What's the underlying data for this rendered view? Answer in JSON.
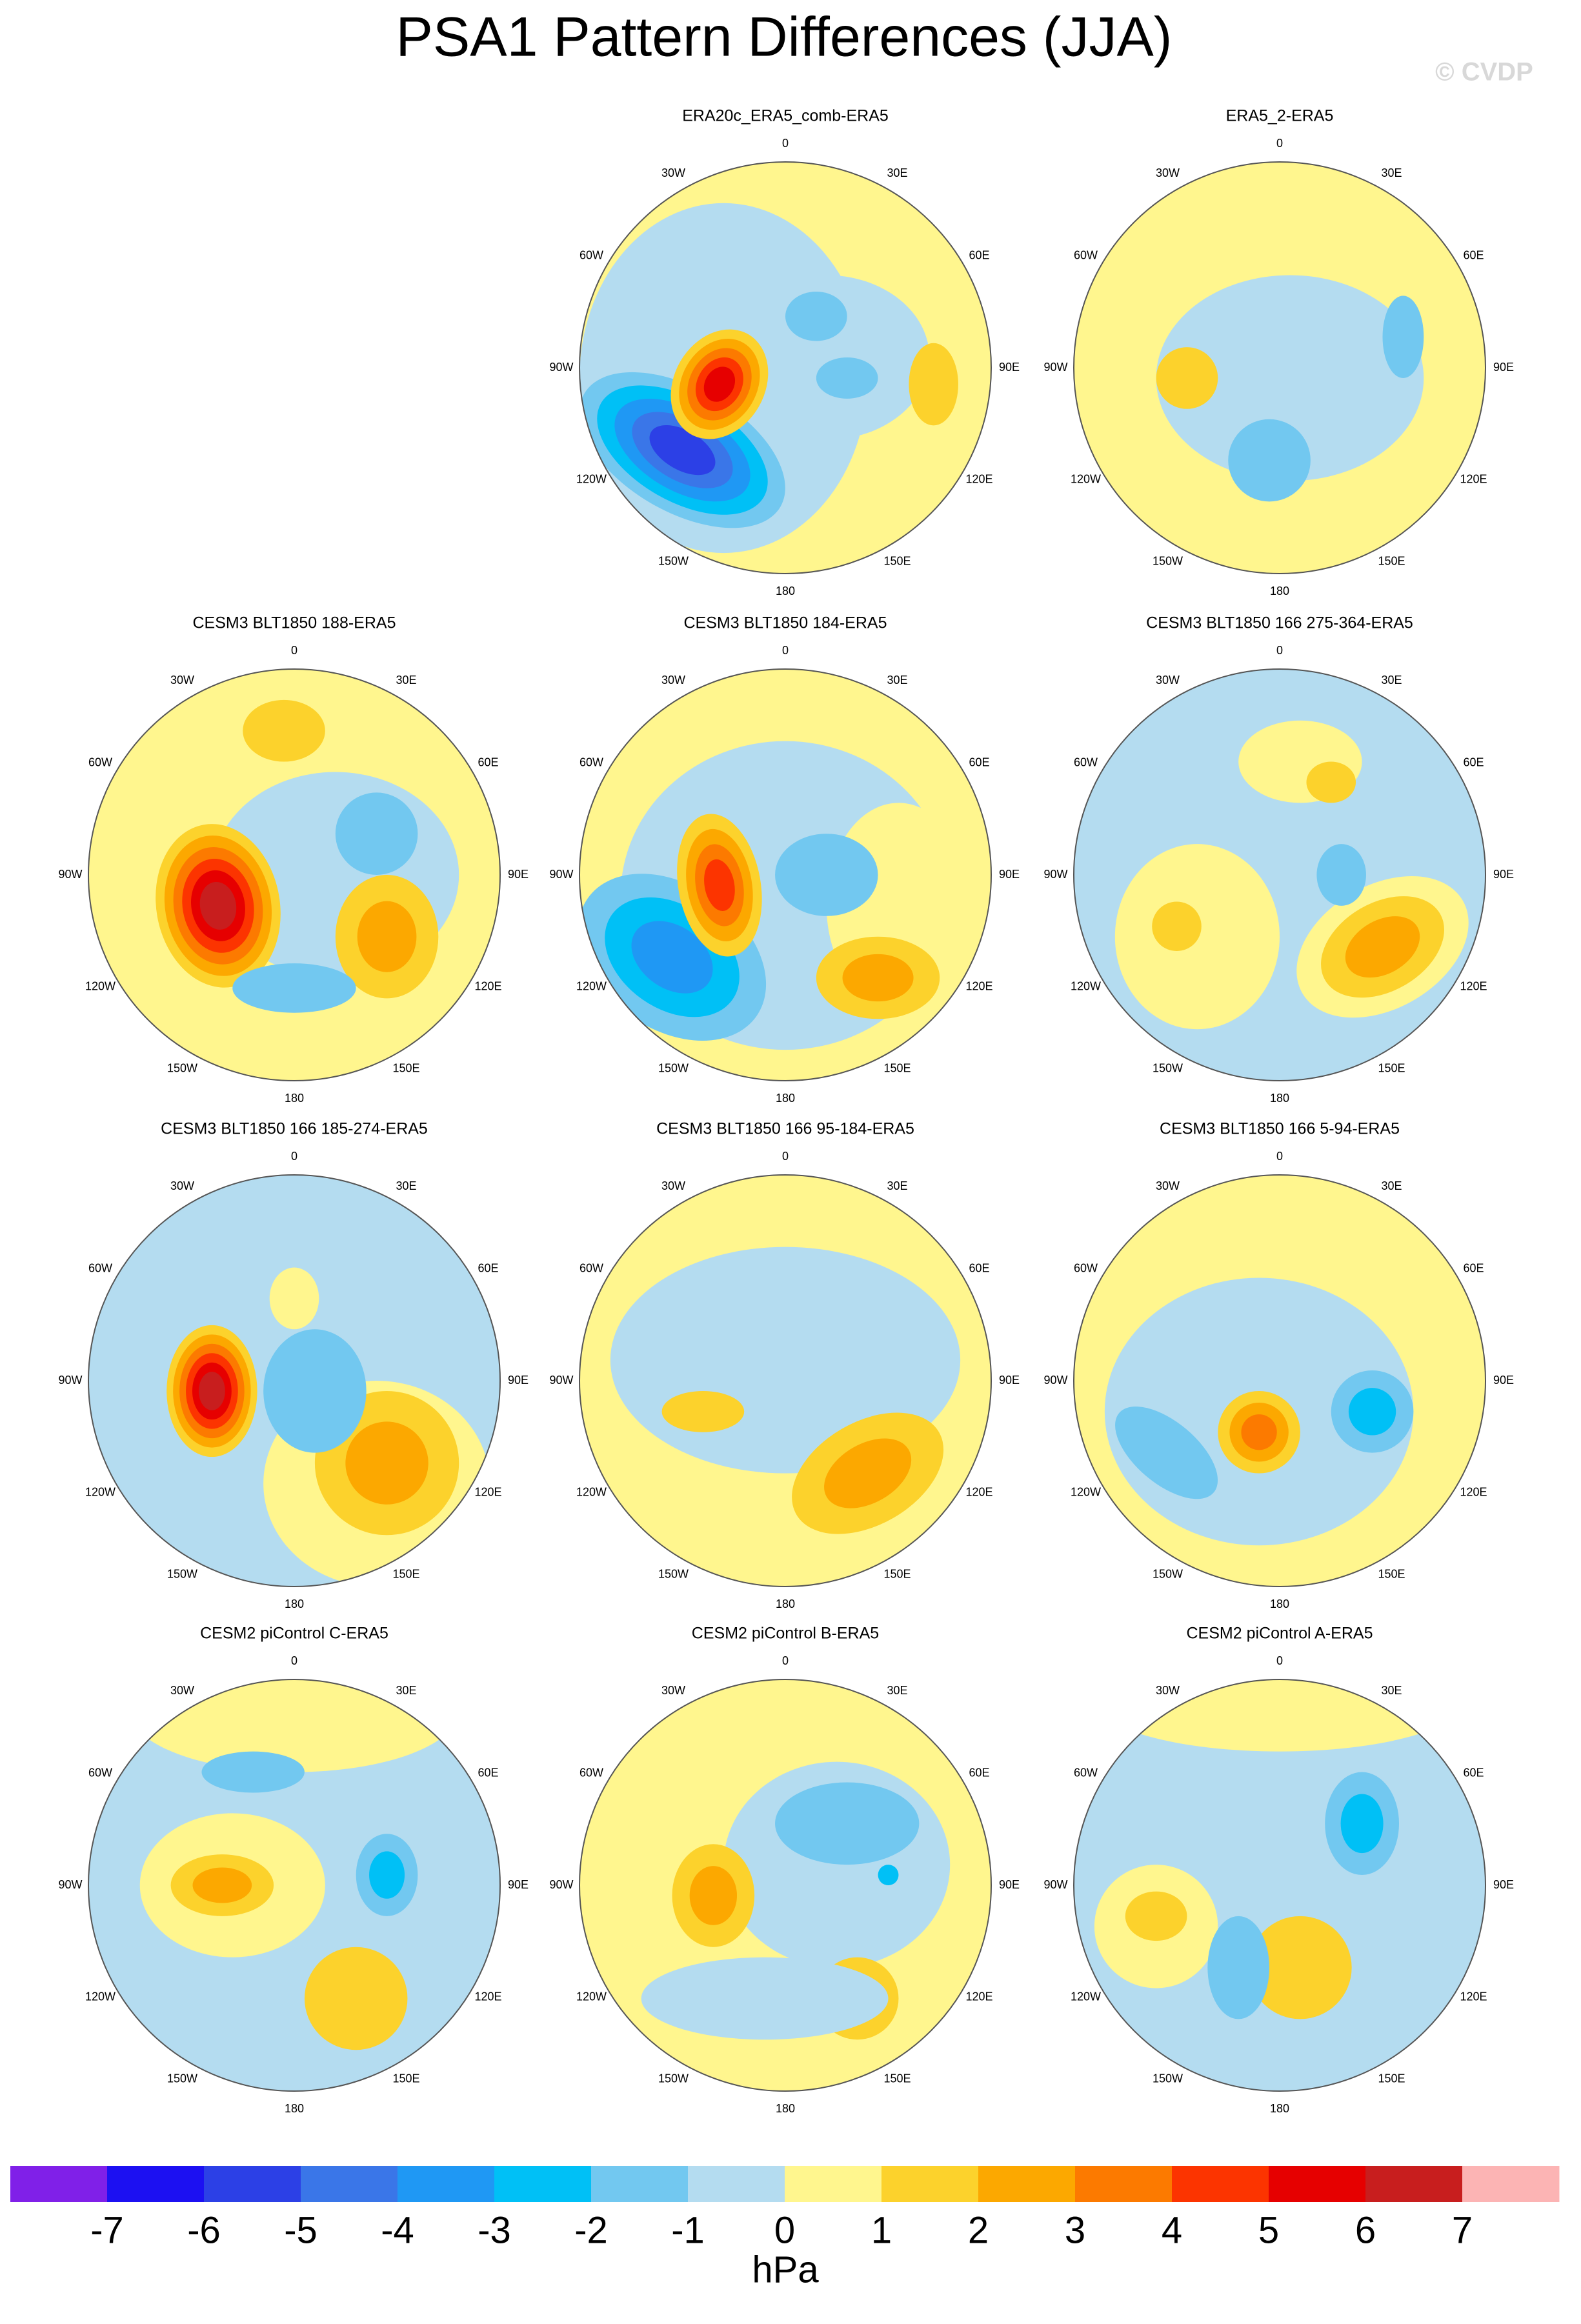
{
  "title": "PSA1 Pattern Differences (JJA)",
  "watermark": "© CVDP",
  "lon_labels": [
    "0",
    "30E",
    "60E",
    "90E",
    "120E",
    "150E",
    "180",
    "150W",
    "120W",
    "90W",
    "60W",
    "30W"
  ],
  "panels": [
    {
      "title": "ERA20c_ERA5_comb-ERA5"
    },
    {
      "title": "ERA5_2-ERA5"
    },
    {
      "title": "CESM3 BLT1850 188-ERA5"
    },
    {
      "title": "CESM3 BLT1850 184-ERA5"
    },
    {
      "title": "CESM3 BLT1850 166 275-364-ERA5"
    },
    {
      "title": "CESM3 BLT1850 166 185-274-ERA5"
    },
    {
      "title": "CESM3 BLT1850 166 95-184-ERA5"
    },
    {
      "title": "CESM3 BLT1850 166 5-94-ERA5"
    },
    {
      "title": "CESM2 piControl C-ERA5"
    },
    {
      "title": "CESM2 piControl B-ERA5"
    },
    {
      "title": "CESM2 piControl A-ERA5"
    }
  ],
  "colorbar": {
    "colors": [
      "#8020e8",
      "#1c10f2",
      "#2c40e6",
      "#3a76e8",
      "#1f98f4",
      "#00c0f6",
      "#72c8f0",
      "#b4dcf0",
      "#fff68e",
      "#fcd22c",
      "#fca800",
      "#fc7a00",
      "#fc3400",
      "#e60000",
      "#c81e1e",
      "#fcb4b4"
    ],
    "labels": [
      -7,
      -6,
      -5,
      -4,
      -3,
      -2,
      -1,
      0,
      1,
      2,
      3,
      4,
      5,
      6,
      7
    ],
    "unit": "hPa"
  }
}
